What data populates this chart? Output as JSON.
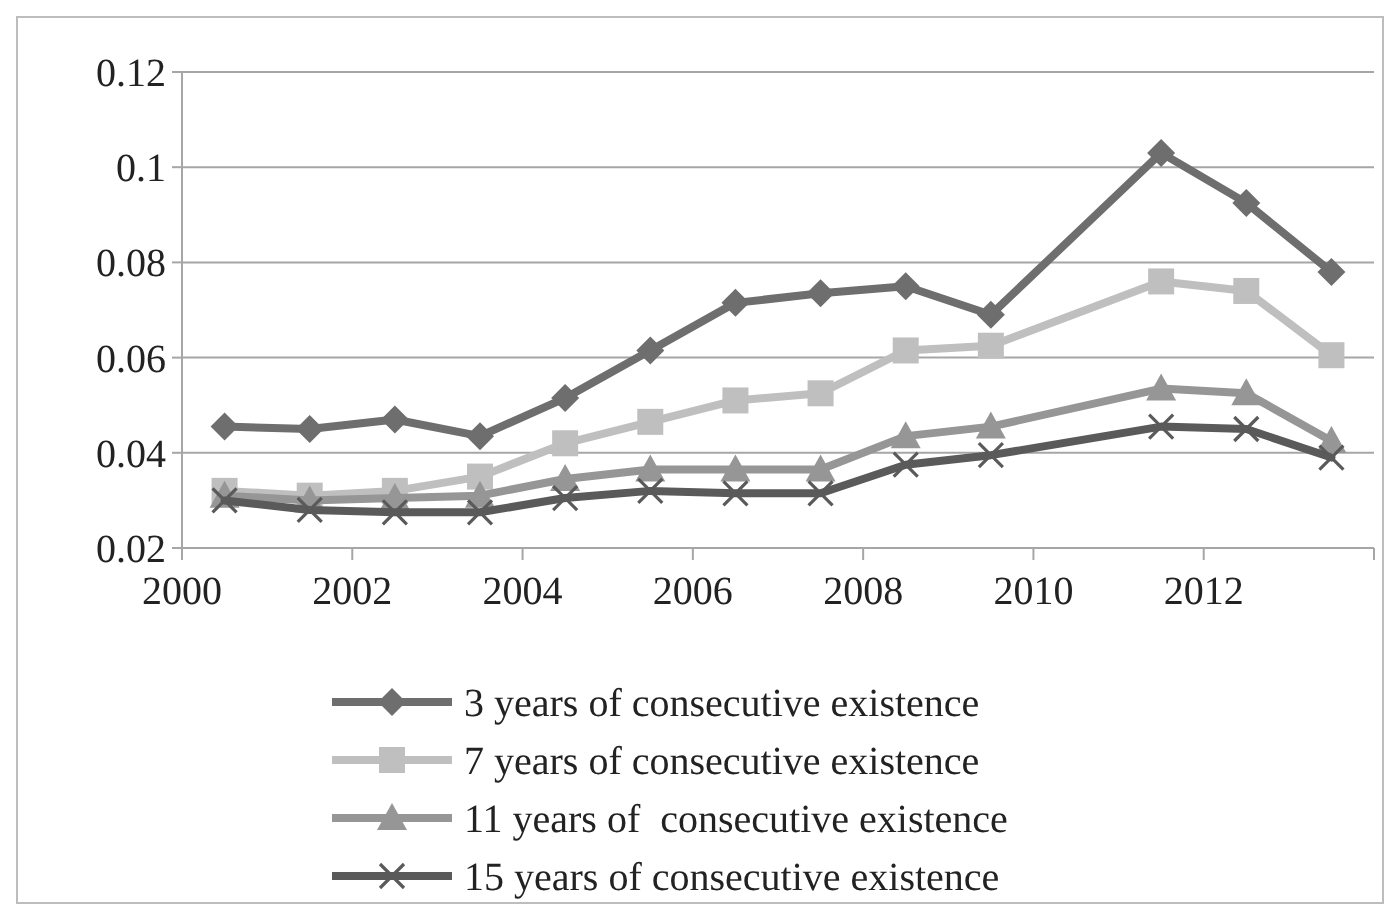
{
  "chart_data": {
    "type": "line",
    "x": [
      2000.5,
      2001.5,
      2002.5,
      2003.5,
      2004.5,
      2005.5,
      2006.5,
      2007.5,
      2008.5,
      2009.5,
      2011.5,
      2012.5,
      2013.5
    ],
    "xlim": [
      2000,
      2014
    ],
    "xticks": [
      2000,
      2002,
      2004,
      2006,
      2008,
      2010,
      2012,
      {
        "value": 2014,
        "label": null
      }
    ],
    "ylim": [
      0.02,
      0.12
    ],
    "yticks": [
      0.02,
      0.04,
      0.06,
      0.08,
      0.1,
      0.12
    ],
    "grid": "y",
    "legend": "bottom",
    "series": [
      {
        "name": "3 years of consecutive existence",
        "color": "#6e6e6e",
        "marker": "diamond",
        "values": [
          0.0455,
          0.045,
          0.047,
          0.0435,
          0.0515,
          0.0615,
          0.0715,
          0.0735,
          0.075,
          0.069,
          0.103,
          0.0925,
          0.078
        ]
      },
      {
        "name": "7 years of consecutive existence",
        "color": "#bfbfbf",
        "marker": "square",
        "values": [
          0.032,
          0.031,
          0.032,
          0.035,
          0.042,
          0.0465,
          0.051,
          0.0525,
          0.0615,
          0.0625,
          0.076,
          0.074,
          0.0605
        ]
      },
      {
        "name": "11 years of  consecutive existence",
        "color": "#969696",
        "marker": "triangle",
        "values": [
          0.031,
          0.03,
          0.0305,
          0.031,
          0.0345,
          0.0365,
          0.0365,
          0.0365,
          0.0435,
          0.0455,
          0.0535,
          0.0525,
          0.0425
        ]
      },
      {
        "name": "15 years of consecutive existence",
        "color": "#5a5a5a",
        "marker": "cross",
        "values": [
          0.03,
          0.028,
          0.0275,
          0.0275,
          0.0305,
          0.032,
          0.0315,
          0.0315,
          0.0375,
          0.0395,
          0.0455,
          0.045,
          0.039
        ]
      }
    ]
  }
}
